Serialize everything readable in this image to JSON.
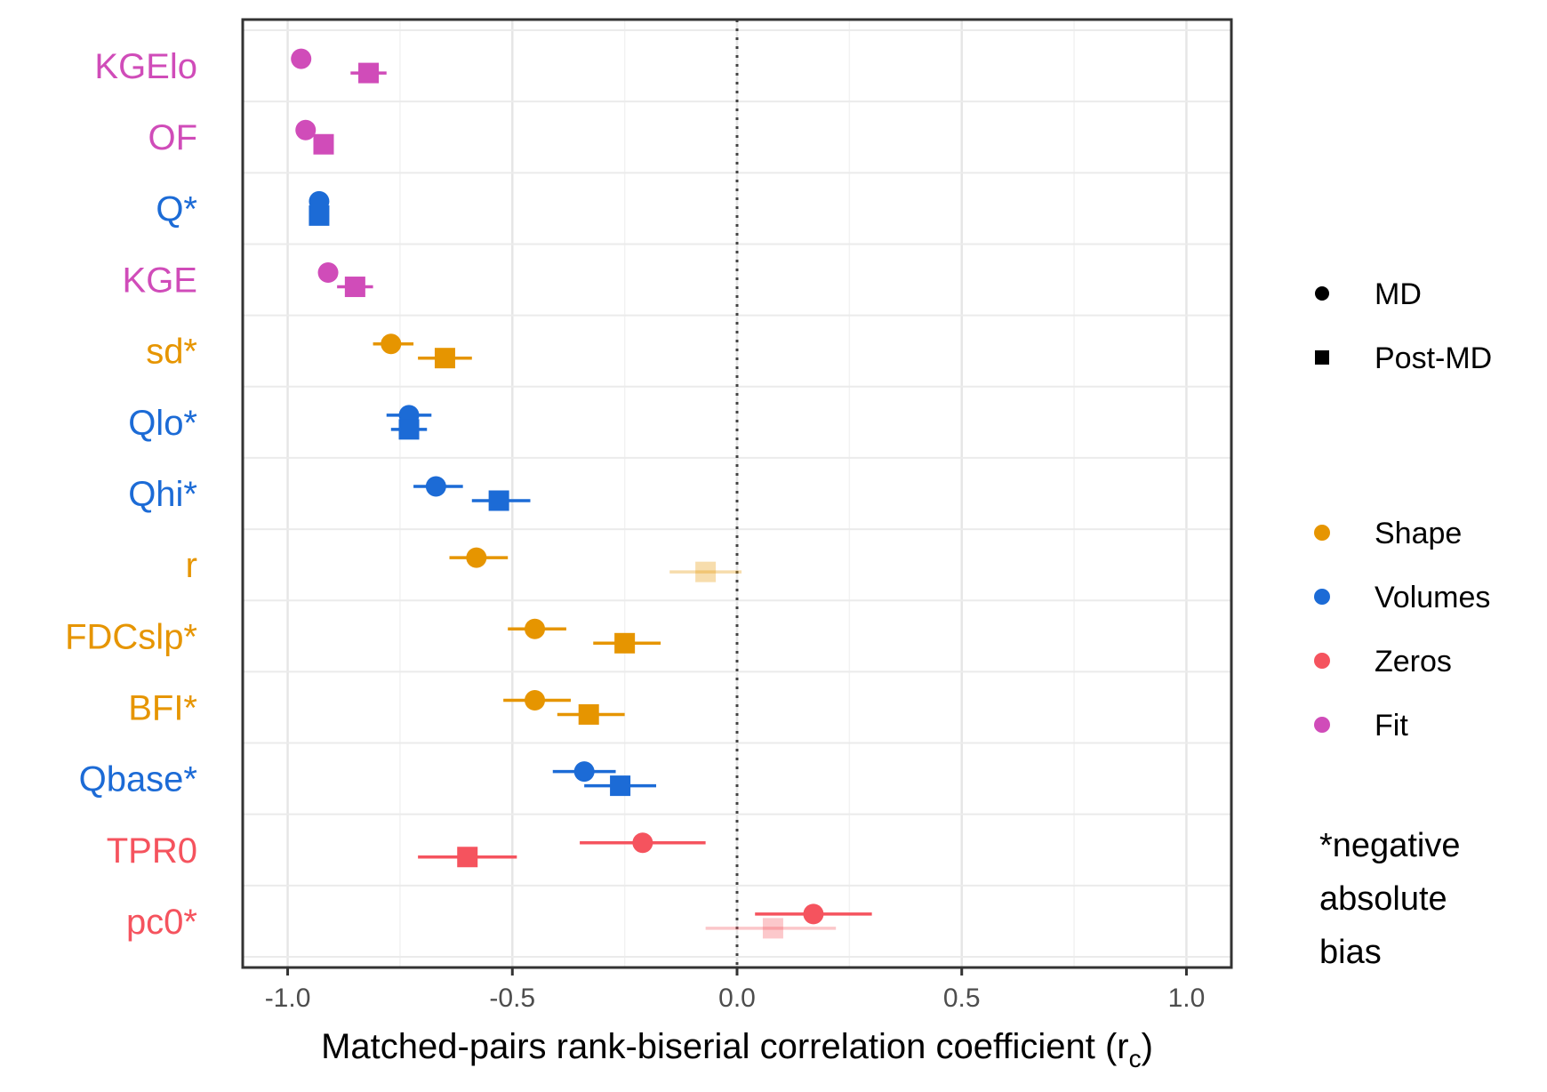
{
  "chart_data": {
    "type": "scatter",
    "subtype": "forest-plot",
    "title": "",
    "xlabel": "Matched-pairs rank-biserial correlation coefficient (r",
    "xlabel_subscript": "c",
    "xlabel_suffix": ")",
    "xlim": [
      -1.1,
      1.1
    ],
    "xticks": [
      -1.0,
      -0.5,
      0.0,
      0.5,
      1.0
    ],
    "xtick_labels": [
      "-1.0",
      "-0.5",
      "0.0",
      "0.5",
      "1.0"
    ],
    "reference_line": {
      "x": 0.0,
      "style": "dotted"
    },
    "grid": true,
    "legend_position": "right",
    "shape_legend": [
      {
        "label": "MD",
        "shape": "circle"
      },
      {
        "label": "Post-MD",
        "shape": "square"
      }
    ],
    "color_legend": [
      {
        "label": "Shape",
        "color": "#e69500"
      },
      {
        "label": "Volumes",
        "color": "#1c6bd6"
      },
      {
        "label": "Zeros",
        "color": "#f5535e"
      },
      {
        "label": "Fit",
        "color": "#d04cb9"
      }
    ],
    "note_lines": [
      "*negative",
      "absolute",
      "bias"
    ],
    "categories": [
      "KGElo",
      "OF",
      "Q*",
      "KGE",
      "sd*",
      "Qlo*",
      "Qhi*",
      "r",
      "FDCslp*",
      "BFI*",
      "Qbase*",
      "TPR0",
      "pc0*"
    ],
    "category_groups": [
      "Fit",
      "Fit",
      "Volumes",
      "Fit",
      "Shape",
      "Volumes",
      "Volumes",
      "Shape",
      "Shape",
      "Shape",
      "Volumes",
      "Zeros",
      "Zeros"
    ],
    "series": [
      {
        "name": "MD",
        "values": [
          -0.97,
          -0.96,
          -0.93,
          -0.91,
          -0.77,
          -0.73,
          -0.67,
          -0.58,
          -0.45,
          -0.45,
          -0.34,
          -0.21,
          0.17
        ],
        "ci_low": [
          -0.97,
          -0.96,
          -0.94,
          -0.91,
          -0.81,
          -0.78,
          -0.72,
          -0.64,
          -0.51,
          -0.52,
          -0.41,
          -0.35,
          0.04
        ],
        "ci_high": [
          -0.97,
          -0.96,
          -0.92,
          -0.91,
          -0.72,
          -0.68,
          -0.61,
          -0.51,
          -0.38,
          -0.37,
          -0.27,
          -0.07,
          0.3
        ],
        "faded": [
          false,
          false,
          false,
          false,
          false,
          false,
          false,
          false,
          false,
          false,
          false,
          false,
          false
        ]
      },
      {
        "name": "Post-MD",
        "values": [
          -0.82,
          -0.92,
          -0.93,
          -0.85,
          -0.65,
          -0.73,
          -0.53,
          -0.07,
          -0.25,
          -0.33,
          -0.26,
          -0.6,
          0.08
        ],
        "ci_low": [
          -0.86,
          -0.94,
          -0.95,
          -0.89,
          -0.71,
          -0.77,
          -0.59,
          -0.15,
          -0.32,
          -0.4,
          -0.34,
          -0.71,
          -0.07
        ],
        "ci_high": [
          -0.78,
          -0.9,
          -0.91,
          -0.81,
          -0.59,
          -0.69,
          -0.46,
          0.01,
          -0.17,
          -0.25,
          -0.18,
          -0.49,
          0.22
        ],
        "faded": [
          false,
          false,
          false,
          false,
          false,
          false,
          false,
          true,
          false,
          false,
          false,
          false,
          true
        ]
      }
    ]
  }
}
